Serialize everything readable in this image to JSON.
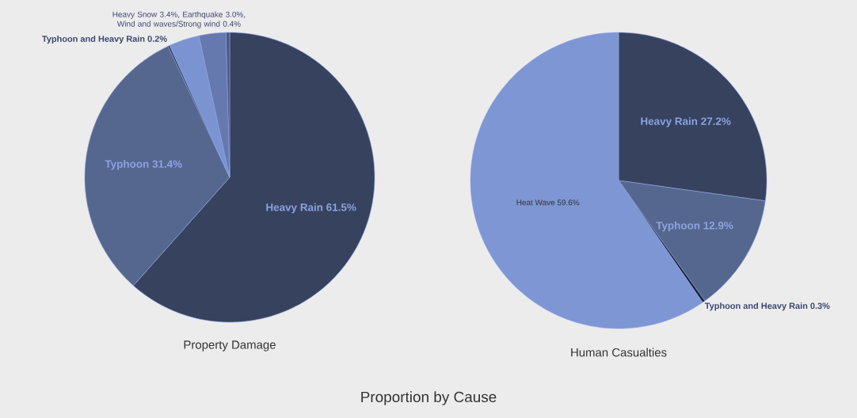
{
  "chart_data": [
    {
      "type": "pie",
      "title": "Proportion by Cause",
      "subtitle": "Property Damage",
      "value_labels": [
        "61.5%",
        "31.4%",
        "0.2%",
        "3.4%,",
        "3.0%,",
        "0.4%"
      ],
      "categories": [
        "Heavy Rain",
        "Typhoon",
        "Typhoon and Heavy Rain",
        "Heavy Snow",
        "Earthquake",
        "Wind and waves/Strong wind"
      ],
      "values": [
        61.5,
        31.4,
        0.2,
        3.4,
        3.0,
        0.4
      ],
      "colors": [
        "#37425e",
        "#56678f",
        "#2f3a56",
        "#7c93d2",
        "#6679ae",
        "#4a5a85"
      ]
    },
    {
      "type": "pie",
      "subtitle": "Human Casualties",
      "value_labels": [
        "27.2%",
        "12.9%",
        "0.3%",
        "59.6%"
      ],
      "categories": [
        "Heavy Rain",
        "Typhoon",
        "Typhoon and Heavy Rain",
        "Heat Wave"
      ],
      "values": [
        27.2,
        12.9,
        0.3,
        59.6
      ],
      "colors": [
        "#37425e",
        "#56678f",
        "#1c2538",
        "#7e96d4"
      ]
    }
  ]
}
